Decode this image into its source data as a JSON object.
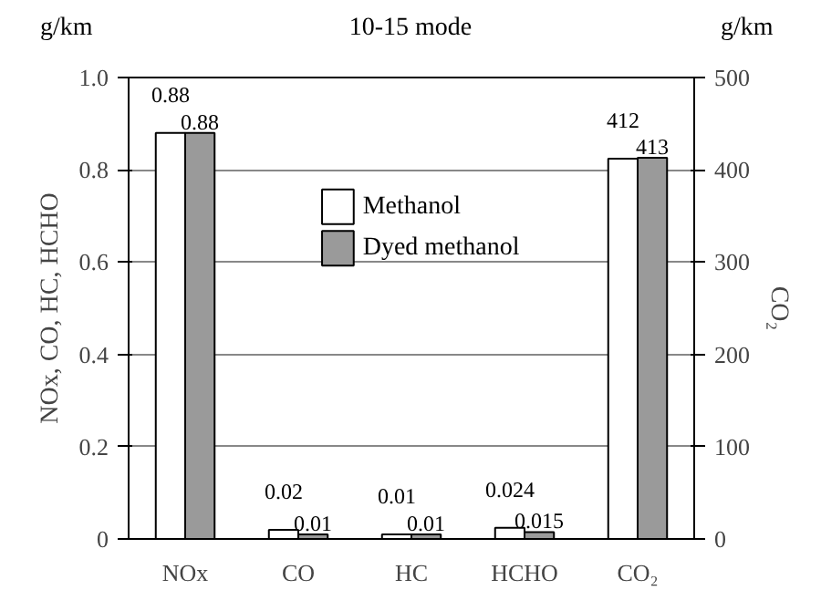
{
  "chart_data": {
    "type": "bar",
    "title": "10-15 mode",
    "ylabel": "NOx, CO, HC, HCHO",
    "y2label": "CO₂",
    "annotations": [
      "g/km",
      "g/km"
    ],
    "categories": [
      "NOx",
      "CO",
      "HC",
      "HCHO",
      "CO₂"
    ],
    "series": [
      {
        "name": "Methanol",
        "color": "#ffffff",
        "values": [
          0.88,
          0.02,
          0.01,
          0.024,
          null
        ]
      },
      {
        "name": "Dyed methanol",
        "color": "#9a9a9a",
        "values": [
          0.88,
          0.01,
          0.01,
          0.015,
          null
        ]
      },
      {
        "color": "#ffffff",
        "axis": "y2",
        "values": [
          null,
          null,
          null,
          null,
          412
        ]
      },
      {
        "color": "#9a9a9a",
        "axis": "y2",
        "values": [
          null,
          null,
          null,
          null,
          413
        ]
      }
    ],
    "ylim": [
      0,
      1
    ],
    "yticks": [
      0,
      0.2,
      0.4,
      0.6,
      0.8,
      {
        "value": 1,
        "label": "1.0"
      }
    ],
    "y2lim": [
      0,
      500
    ],
    "y2ticks": [
      0,
      100,
      200,
      300,
      400,
      500
    ],
    "data_labels": true,
    "grid": "y",
    "legend": "top left"
  }
}
